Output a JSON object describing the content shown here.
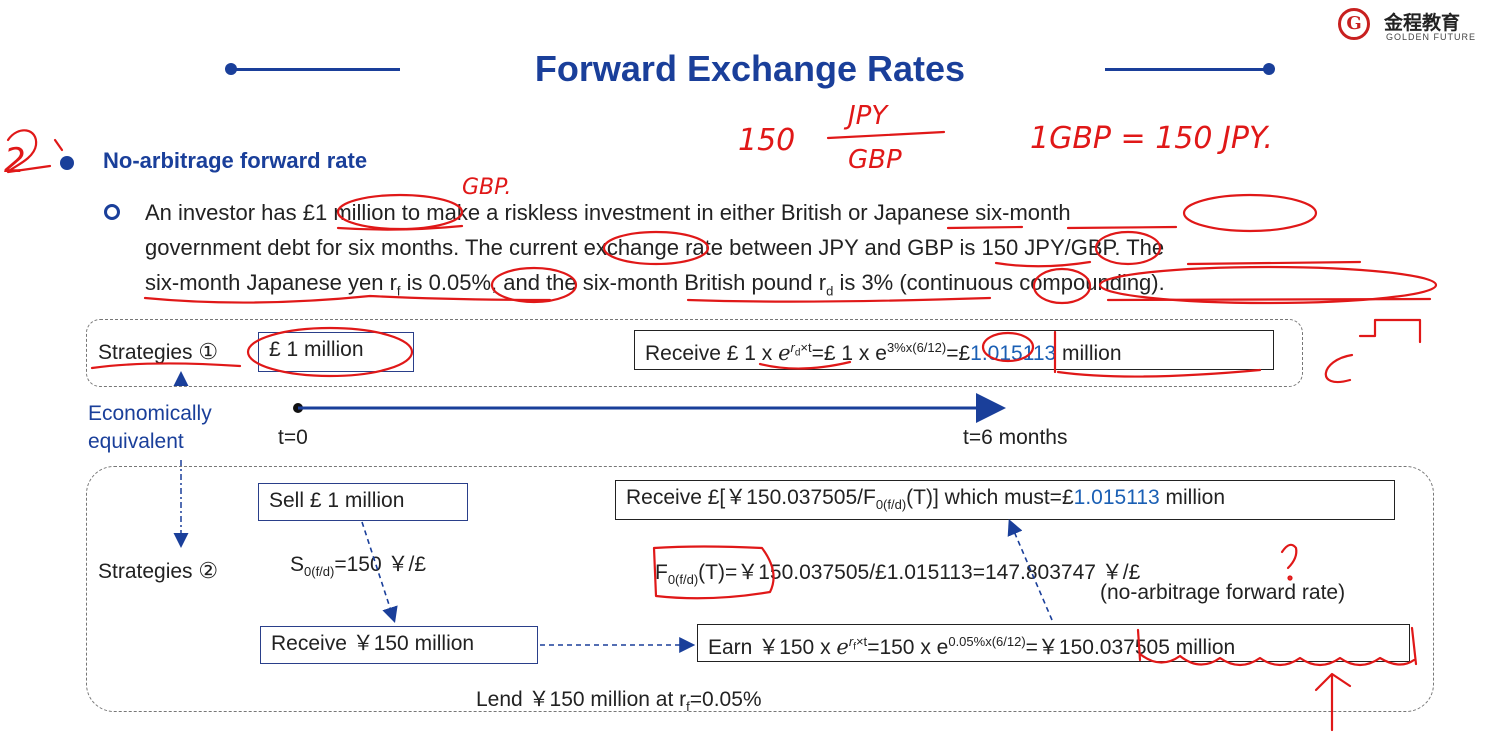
{
  "title": "Forward Exchange Rates",
  "logo": {
    "mark": "G",
    "cn": "金程教育",
    "en": "GOLDEN FUTURE"
  },
  "heading": "No-arbitrage forward rate",
  "paragraph": {
    "l1a": "An investor has ",
    "l1b": "£1 million",
    "l1c": " to make a riskless investment in either British or Japanese six-month",
    "l2": "government debt for six months. The current exchange rate between JPY and GBP is 150 JPY/GBP. The",
    "l3a": "six-month Japanese yen r",
    "l3sub": "f",
    "l3b": " is 0.05%, and the six-month British pound r",
    "l3sub2": "d",
    "l3c": " is 3% (continuous compounding)."
  },
  "strategy1": {
    "label": "Strategies",
    "num": "①",
    "amount": "£ 1 million",
    "receive_a": "Receive £ 1 x ",
    "receive_exp": "r",
    "receive_exp_sub": "d",
    "receive_exp_t": "×t",
    "receive_b": "=£ 1 x e",
    "receive_sup": "3%x(6/12)",
    "receive_c": "=£",
    "receive_num": "1.015113",
    "receive_d": " million"
  },
  "econ_equiv": {
    "line1": "Economically",
    "line2": "equivalent"
  },
  "timeline": {
    "t0": "t=0",
    "t6": "t=6 months"
  },
  "strategy2": {
    "label": "Strategies",
    "num": "②",
    "sell": "Sell £ 1 million",
    "spot_a": "S",
    "spot_sub": "0(f/d)",
    "spot_b": "=150 ￥/£",
    "receive_yen": "Receive ￥150 million",
    "earn_a": "Earn ￥150 x ",
    "earn_exp": "r",
    "earn_exp_sub": "f",
    "earn_exp_t": "×t",
    "earn_b": "=150 x e",
    "earn_sup": "0.05%x(6/12)",
    "earn_c": "=￥150.037505 million",
    "final_a": "Receive £[￥150.037505/F",
    "final_sub": "0(f/d)",
    "final_b": "(T)] which must=£",
    "final_num": "1.015113",
    "final_c": " million",
    "fwd_a": "F",
    "fwd_sub": "0(f/d)",
    "fwd_b": "(T)=￥150.037505/£1.015113=147.803747 ￥/£",
    "fwd_note": "(no-arbitrage forward rate)",
    "lend_a": "Lend ￥150 million at r",
    "lend_sub": "f",
    "lend_b": "=0.05%"
  },
  "annotations": {
    "num": "2",
    "ratio_num": "150",
    "ratio_top": "JPY",
    "ratio_bottom": "GBP",
    "eq": "1GBP = 150 JPY.",
    "gbp": "GBP."
  },
  "colors": {
    "accent": "#1a3f9a",
    "ink": "#e01818",
    "number": "#1a5fb4"
  }
}
